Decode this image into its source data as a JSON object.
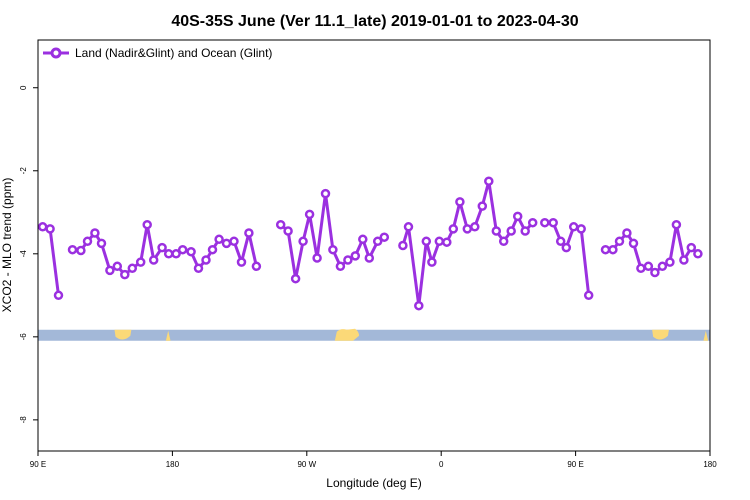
{
  "chart_data": {
    "type": "line",
    "title": "40S-35S June (Ver 11.1_late)   2019-01-01 to 2023-04-30",
    "xlabel": "Longitude (deg E)",
    "ylabel": "XCO2 - MLO trend (ppm)",
    "xlim": [
      90,
      450
    ],
    "ylim": [
      -8.75,
      1.15
    ],
    "x_ticks": [
      {
        "value": 90,
        "label": "90 E"
      },
      {
        "value": 162,
        "label": "180"
      },
      {
        "value": 234,
        "label": "90 W"
      },
      {
        "value": 306,
        "label": "0"
      },
      {
        "value": 378,
        "label": "90 E"
      },
      {
        "value": 450,
        "label": "180"
      }
    ],
    "y_ticks": [
      {
        "value": 0,
        "label": "0"
      },
      {
        "value": -2,
        "label": "-2"
      },
      {
        "value": -4,
        "label": "-4"
      },
      {
        "value": -6,
        "label": "-6"
      },
      {
        "value": -8,
        "label": "-8"
      }
    ],
    "grid": false,
    "legend_position": "top-left",
    "colors": {
      "series": "#9b30e0",
      "ocean": "#a3b8d8",
      "land": "#fbd978"
    },
    "series": [
      {
        "name": "Land (Nadir&Glint) and Ocean (Glint)",
        "segments": [
          [
            [
              92.5,
              -3.35
            ],
            [
              96.5,
              -3.4
            ],
            [
              101,
              -5.0
            ]
          ],
          [
            [
              108.5,
              -3.9
            ],
            [
              113,
              -3.92
            ],
            [
              116.5,
              -3.7
            ],
            [
              120.5,
              -3.5
            ],
            [
              124,
              -3.75
            ],
            [
              128.5,
              -4.4
            ],
            [
              132.5,
              -4.3
            ],
            [
              136.5,
              -4.5
            ],
            [
              140.5,
              -4.35
            ],
            [
              145,
              -4.2
            ],
            [
              148.5,
              -3.3
            ],
            [
              152,
              -4.15
            ],
            [
              156.5,
              -3.85
            ],
            [
              160,
              -4.0
            ],
            [
              164,
              -4.0
            ],
            [
              167.5,
              -3.9
            ],
            [
              172,
              -3.95
            ],
            [
              176,
              -4.35
            ],
            [
              180,
              -4.15
            ],
            [
              183.5,
              -3.9
            ],
            [
              187,
              -3.65
            ],
            [
              191,
              -3.75
            ],
            [
              195,
              -3.7
            ],
            [
              199,
              -4.2
            ],
            [
              203,
              -3.5
            ],
            [
              207,
              -4.3
            ]
          ],
          [
            [
              220,
              -3.3
            ],
            [
              224,
              -3.45
            ],
            [
              228,
              -4.6
            ],
            [
              232,
              -3.7
            ],
            [
              235.5,
              -3.05
            ],
            [
              239.5,
              -4.1
            ],
            [
              244,
              -2.55
            ],
            [
              248,
              -3.9
            ],
            [
              252,
              -4.3
            ],
            [
              256,
              -4.15
            ],
            [
              260,
              -4.05
            ],
            [
              264,
              -3.65
            ],
            [
              267.5,
              -4.1
            ],
            [
              272,
              -3.7
            ],
            [
              275.5,
              -3.6
            ]
          ],
          [
            [
              285.5,
              -3.8
            ],
            [
              288.5,
              -3.35
            ],
            [
              294,
              -5.25
            ],
            [
              298,
              -3.7
            ],
            [
              301,
              -4.2
            ],
            [
              305,
              -3.7
            ],
            [
              309,
              -3.72
            ],
            [
              312.5,
              -3.4
            ],
            [
              316,
              -2.75
            ],
            [
              320,
              -3.4
            ],
            [
              324,
              -3.35
            ],
            [
              328,
              -2.85
            ],
            [
              331.5,
              -2.25
            ],
            [
              335.5,
              -3.45
            ],
            [
              339.5,
              -3.7
            ],
            [
              343.5,
              -3.45
            ],
            [
              347,
              -3.1
            ],
            [
              351,
              -3.45
            ],
            [
              355,
              -3.25
            ]
          ],
          [
            [
              361.5,
              -3.25
            ],
            [
              366,
              -3.25
            ],
            [
              370,
              -3.7
            ],
            [
              373,
              -3.85
            ],
            [
              377,
              -3.35
            ],
            [
              381,
              -3.4
            ],
            [
              385,
              -5.0
            ]
          ],
          [
            [
              394,
              -3.9
            ],
            [
              398,
              -3.9
            ],
            [
              401.5,
              -3.7
            ],
            [
              405.5,
              -3.5
            ],
            [
              409,
              -3.75
            ],
            [
              413,
              -4.35
            ],
            [
              417,
              -4.3
            ],
            [
              420.5,
              -4.45
            ],
            [
              424.5,
              -4.3
            ],
            [
              428.5,
              -4.2
            ],
            [
              432,
              -3.3
            ],
            [
              436,
              -4.15
            ],
            [
              440,
              -3.85
            ],
            [
              443.5,
              -4.0
            ]
          ]
        ]
      }
    ],
    "land_band": {
      "y": -5.95,
      "patches": [
        {
          "from": 131,
          "to": 140,
          "shape": "blob"
        },
        {
          "from": 158.5,
          "to": 161,
          "shape": "spike"
        },
        {
          "from": 249,
          "to": 262,
          "shape": "wide"
        },
        {
          "from": 419,
          "to": 428,
          "shape": "blob"
        },
        {
          "from": 446.5,
          "to": 449,
          "shape": "spike"
        }
      ]
    }
  }
}
